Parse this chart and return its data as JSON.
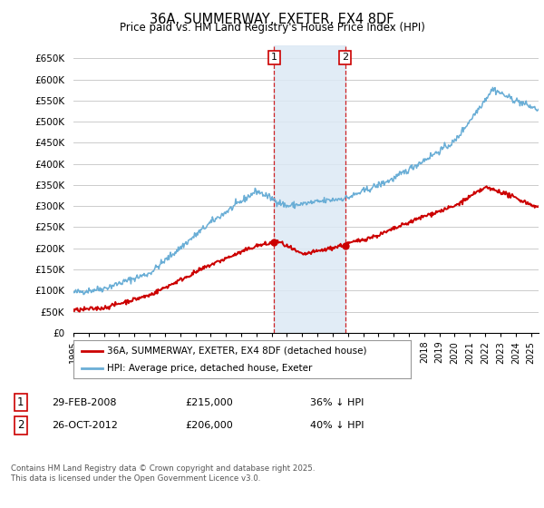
{
  "title": "36A, SUMMERWAY, EXETER, EX4 8DF",
  "subtitle": "Price paid vs. HM Land Registry's House Price Index (HPI)",
  "ylabel_ticks": [
    "£0",
    "£50K",
    "£100K",
    "£150K",
    "£200K",
    "£250K",
    "£300K",
    "£350K",
    "£400K",
    "£450K",
    "£500K",
    "£550K",
    "£600K",
    "£650K"
  ],
  "ytick_values": [
    0,
    50000,
    100000,
    150000,
    200000,
    250000,
    300000,
    350000,
    400000,
    450000,
    500000,
    550000,
    600000,
    650000
  ],
  "ylim": [
    0,
    680000
  ],
  "xlim_start": 1995.0,
  "xlim_end": 2025.5,
  "hpi_color": "#6aaed6",
  "price_color": "#cc0000",
  "transaction1_date": 2008.16,
  "transaction1_price": 215000,
  "transaction2_date": 2012.82,
  "transaction2_price": 206000,
  "legend_property": "36A, SUMMERWAY, EXETER, EX4 8DF (detached house)",
  "legend_hpi": "HPI: Average price, detached house, Exeter",
  "bg_color": "#ffffff",
  "plot_bg_color": "#ffffff",
  "grid_color": "#cccccc",
  "shade_color": "#dce9f5",
  "footer": "Contains HM Land Registry data © Crown copyright and database right 2025.\nThis data is licensed under the Open Government Licence v3.0."
}
